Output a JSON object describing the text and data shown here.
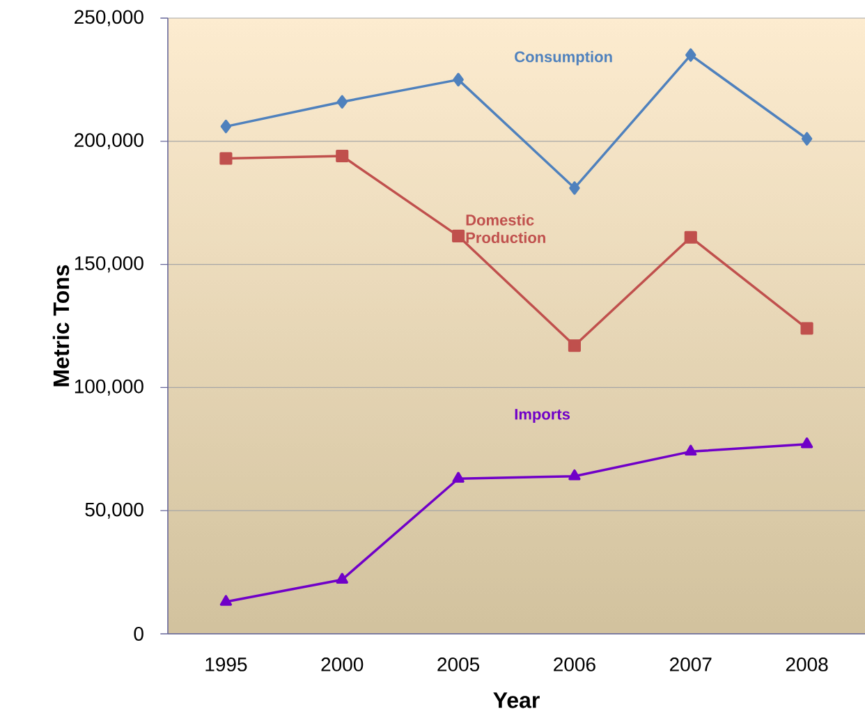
{
  "chart_data": {
    "type": "line",
    "xlabel": "Year",
    "ylabel": "Metric Tons",
    "categories": [
      "1995",
      "2000",
      "2005",
      "2006",
      "2007",
      "2008"
    ],
    "series": [
      {
        "name": "Consumption",
        "color": "#4f81bd",
        "marker": "diamond",
        "values": [
          206000,
          216000,
          225000,
          181000,
          235000,
          201000
        ]
      },
      {
        "name": "Domestic Production",
        "color": "#c0504d",
        "marker": "square",
        "values": [
          193000,
          194000,
          161500,
          117000,
          161000,
          124000
        ]
      },
      {
        "name": "Imports",
        "color": "#7000c8",
        "marker": "triangle",
        "values": [
          13000,
          22000,
          63000,
          64000,
          74000,
          77000
        ]
      }
    ],
    "ylim": [
      0,
      250000
    ],
    "yticks": [
      {
        "value": 0,
        "label": "0"
      },
      {
        "value": 50000,
        "label": "50,000"
      },
      {
        "value": 100000,
        "label": "100,000"
      },
      {
        "value": 150000,
        "label": "150,000"
      },
      {
        "value": 200000,
        "label": "200,000"
      },
      {
        "value": 250000,
        "label": "250,000"
      }
    ],
    "grid": "y"
  }
}
